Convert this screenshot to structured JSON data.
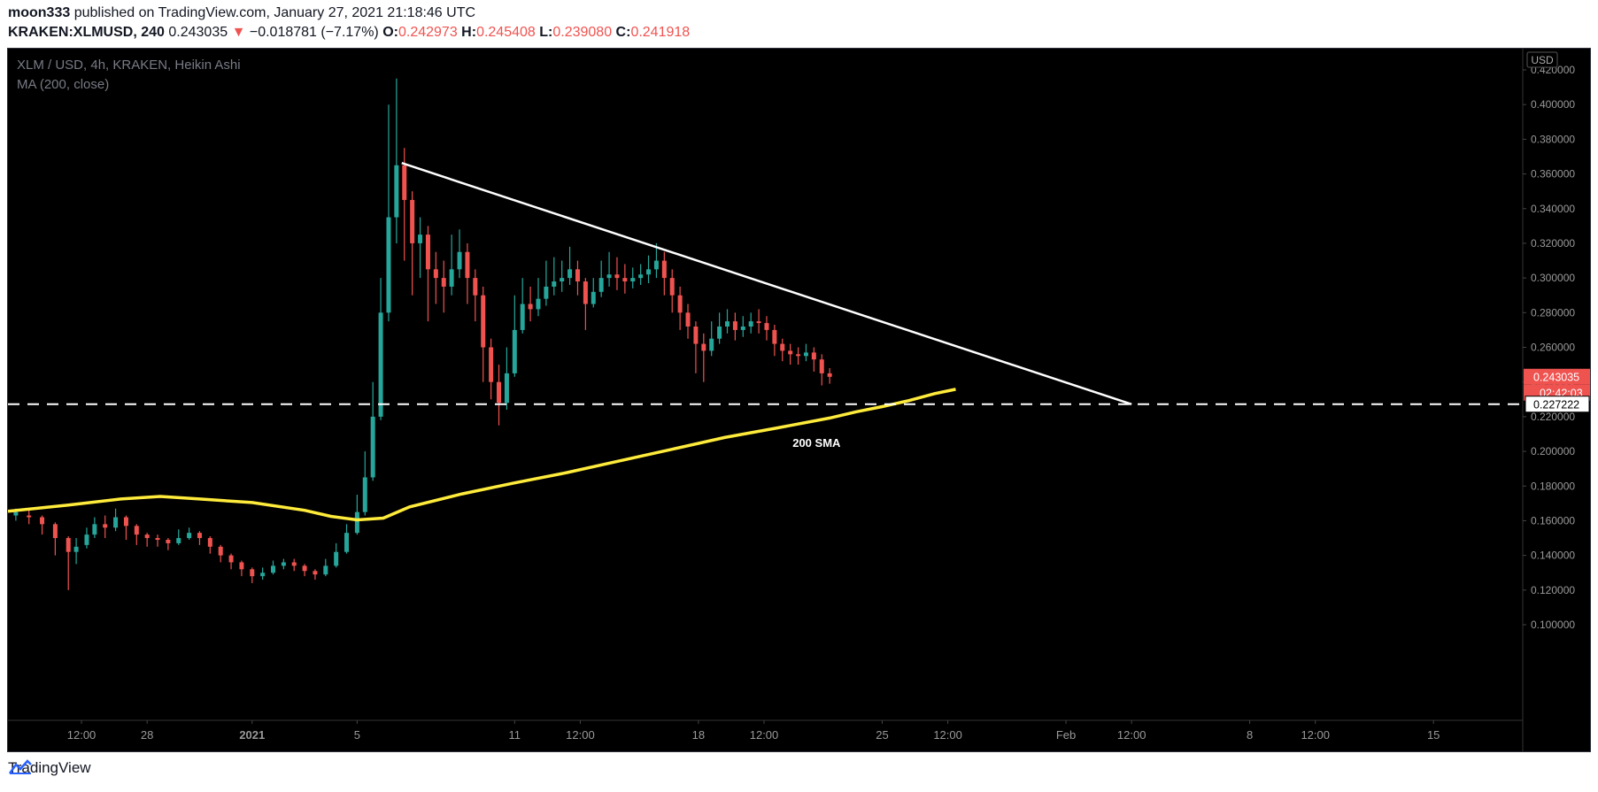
{
  "header": {
    "author": "moon333",
    "published_text": "published on TradingView.com, January 27, 2021 21:18:46 UTC",
    "symbol": "KRAKEN:XLMUSD, 240",
    "last": "0.243035",
    "change": "−0.018781 (−7.17%)",
    "o_label": "O:",
    "o_value": "0.242973",
    "h_label": "H:",
    "h_value": "0.245408",
    "l_label": "L:",
    "l_value": "0.239080",
    "c_label": "C:",
    "c_value": "0.241918"
  },
  "legend": {
    "title": "XLM / USD, 4h, KRAKEN, Heikin Ashi",
    "indicator": "MA (200, close)"
  },
  "footer": {
    "brand": "TradingView"
  },
  "colors": {
    "up": "#26a69a",
    "down": "#ef5350",
    "ma": "#ffeb3b",
    "trendline": "#ffffff",
    "background": "#000000"
  },
  "chart_data": {
    "type": "candlestick",
    "currency": "USD",
    "y_ticks": [
      "0.100000",
      "0.120000",
      "0.140000",
      "0.160000",
      "0.180000",
      "0.200000",
      "0.220000",
      "0.240000",
      "0.260000",
      "0.280000",
      "0.300000",
      "0.320000",
      "0.340000",
      "0.360000",
      "0.380000",
      "0.400000",
      "0.420000"
    ],
    "ylim": [
      0.1,
      0.42
    ],
    "x_ticks": [
      "12:00",
      "28",
      "2021",
      "5",
      "11",
      "12:00",
      "18",
      "12:00",
      "25",
      "12:00",
      "Feb",
      "12:00",
      "8",
      "12:00",
      "15"
    ],
    "x_tick_days": [
      -6.5,
      -4,
      0,
      4,
      10,
      12.5,
      17,
      19.5,
      24,
      26.5,
      31,
      33.5,
      38,
      40.5,
      45
    ],
    "xlim": [
      -9.3,
      48.4
    ],
    "price_label": "0.243035",
    "countdown_label": "02:42:03",
    "horizontal_line": {
      "price": 0.227222,
      "label": "0.227222"
    },
    "trendline": {
      "start": {
        "day": 5.7,
        "price": 0.3663
      },
      "end": {
        "day": 33.5,
        "price": 0.2272
      }
    },
    "annotation": "200 SMA",
    "ma200": [
      [
        -9.3,
        0.1655
      ],
      [
        -7,
        0.169
      ],
      [
        -5,
        0.1725
      ],
      [
        -3.5,
        0.174
      ],
      [
        -2,
        0.1725
      ],
      [
        0,
        0.1705
      ],
      [
        2,
        0.166
      ],
      [
        3,
        0.1625
      ],
      [
        4,
        0.1605
      ],
      [
        5,
        0.1615
      ],
      [
        6,
        0.168
      ],
      [
        8,
        0.1755
      ],
      [
        10,
        0.1818
      ],
      [
        12,
        0.1878
      ],
      [
        14,
        0.1945
      ],
      [
        16,
        0.2012
      ],
      [
        18,
        0.208
      ],
      [
        20,
        0.2135
      ],
      [
        22,
        0.2192
      ],
      [
        23,
        0.2228
      ],
      [
        24,
        0.2258
      ],
      [
        25,
        0.2292
      ],
      [
        26,
        0.2333
      ],
      [
        26.8,
        0.2358
      ]
    ],
    "candles": [
      [
        -9.0,
        0.163,
        0.165,
        0.16,
        0.167
      ],
      [
        -8.5,
        0.163,
        0.162,
        0.158,
        0.166
      ],
      [
        -8.0,
        0.162,
        0.158,
        0.152,
        0.163
      ],
      [
        -7.5,
        0.158,
        0.15,
        0.14,
        0.159
      ],
      [
        -7.0,
        0.15,
        0.142,
        0.12,
        0.151
      ],
      [
        -6.7,
        0.142,
        0.145,
        0.135,
        0.15
      ],
      [
        -6.3,
        0.146,
        0.152,
        0.144,
        0.156
      ],
      [
        -6.0,
        0.152,
        0.158,
        0.15,
        0.162
      ],
      [
        -5.6,
        0.158,
        0.156,
        0.15,
        0.163
      ],
      [
        -5.2,
        0.156,
        0.162,
        0.154,
        0.167
      ],
      [
        -4.8,
        0.162,
        0.157,
        0.149,
        0.163
      ],
      [
        -4.4,
        0.157,
        0.152,
        0.146,
        0.158
      ],
      [
        -4.0,
        0.152,
        0.15,
        0.145,
        0.153
      ],
      [
        -3.6,
        0.15,
        0.149,
        0.145,
        0.152
      ],
      [
        -3.2,
        0.149,
        0.147,
        0.143,
        0.15
      ],
      [
        -2.8,
        0.147,
        0.15,
        0.146,
        0.155
      ],
      [
        -2.4,
        0.15,
        0.153,
        0.149,
        0.156
      ],
      [
        -2.0,
        0.153,
        0.15,
        0.146,
        0.154
      ],
      [
        -1.6,
        0.15,
        0.145,
        0.141,
        0.151
      ],
      [
        -1.2,
        0.145,
        0.14,
        0.136,
        0.146
      ],
      [
        -0.8,
        0.14,
        0.136,
        0.132,
        0.141
      ],
      [
        -0.4,
        0.136,
        0.132,
        0.128,
        0.137
      ],
      [
        0.0,
        0.132,
        0.128,
        0.124,
        0.133
      ],
      [
        0.4,
        0.128,
        0.13,
        0.126,
        0.133
      ],
      [
        0.8,
        0.13,
        0.134,
        0.129,
        0.137
      ],
      [
        1.2,
        0.134,
        0.136,
        0.132,
        0.138
      ],
      [
        1.6,
        0.136,
        0.134,
        0.131,
        0.138
      ],
      [
        2.0,
        0.134,
        0.131,
        0.128,
        0.135
      ],
      [
        2.4,
        0.131,
        0.129,
        0.126,
        0.132
      ],
      [
        2.8,
        0.129,
        0.134,
        0.128,
        0.138
      ],
      [
        3.2,
        0.134,
        0.142,
        0.133,
        0.147
      ],
      [
        3.6,
        0.142,
        0.153,
        0.141,
        0.158
      ],
      [
        4.0,
        0.153,
        0.165,
        0.152,
        0.175
      ],
      [
        4.3,
        0.165,
        0.185,
        0.163,
        0.2
      ],
      [
        4.6,
        0.185,
        0.22,
        0.183,
        0.24
      ],
      [
        4.9,
        0.22,
        0.28,
        0.218,
        0.3
      ],
      [
        5.2,
        0.28,
        0.335,
        0.275,
        0.4
      ],
      [
        5.5,
        0.335,
        0.365,
        0.32,
        0.415
      ],
      [
        5.8,
        0.365,
        0.345,
        0.31,
        0.375
      ],
      [
        6.1,
        0.345,
        0.32,
        0.29,
        0.35
      ],
      [
        6.4,
        0.32,
        0.325,
        0.3,
        0.335
      ],
      [
        6.7,
        0.325,
        0.305,
        0.275,
        0.33
      ],
      [
        7.0,
        0.305,
        0.3,
        0.285,
        0.315
      ],
      [
        7.3,
        0.3,
        0.295,
        0.28,
        0.31
      ],
      [
        7.6,
        0.295,
        0.305,
        0.29,
        0.325
      ],
      [
        7.9,
        0.305,
        0.315,
        0.3,
        0.328
      ],
      [
        8.2,
        0.315,
        0.3,
        0.285,
        0.32
      ],
      [
        8.5,
        0.3,
        0.29,
        0.275,
        0.305
      ],
      [
        8.8,
        0.29,
        0.26,
        0.24,
        0.295
      ],
      [
        9.1,
        0.26,
        0.24,
        0.23,
        0.265
      ],
      [
        9.4,
        0.24,
        0.228,
        0.215,
        0.25
      ],
      [
        9.7,
        0.228,
        0.245,
        0.224,
        0.26
      ],
      [
        10.0,
        0.245,
        0.27,
        0.243,
        0.29
      ],
      [
        10.3,
        0.27,
        0.285,
        0.268,
        0.3
      ],
      [
        10.6,
        0.285,
        0.282,
        0.275,
        0.295
      ],
      [
        10.9,
        0.282,
        0.288,
        0.278,
        0.3
      ],
      [
        11.2,
        0.288,
        0.295,
        0.284,
        0.31
      ],
      [
        11.5,
        0.295,
        0.298,
        0.29,
        0.312
      ],
      [
        11.8,
        0.298,
        0.3,
        0.292,
        0.31
      ],
      [
        12.1,
        0.3,
        0.305,
        0.296,
        0.318
      ],
      [
        12.4,
        0.305,
        0.298,
        0.29,
        0.31
      ],
      [
        12.7,
        0.298,
        0.285,
        0.27,
        0.3
      ],
      [
        13.0,
        0.285,
        0.292,
        0.283,
        0.3
      ],
      [
        13.3,
        0.292,
        0.3,
        0.289,
        0.31
      ],
      [
        13.6,
        0.3,
        0.302,
        0.295,
        0.315
      ],
      [
        13.9,
        0.302,
        0.3,
        0.293,
        0.312
      ],
      [
        14.2,
        0.3,
        0.298,
        0.291,
        0.308
      ],
      [
        14.5,
        0.298,
        0.3,
        0.294,
        0.306
      ],
      [
        14.8,
        0.3,
        0.302,
        0.296,
        0.308
      ],
      [
        15.1,
        0.302,
        0.305,
        0.297,
        0.313
      ],
      [
        15.4,
        0.305,
        0.31,
        0.3,
        0.32
      ],
      [
        15.7,
        0.31,
        0.3,
        0.29,
        0.315
      ],
      [
        16.0,
        0.3,
        0.29,
        0.28,
        0.305
      ],
      [
        16.3,
        0.29,
        0.28,
        0.27,
        0.295
      ],
      [
        16.6,
        0.28,
        0.272,
        0.265,
        0.285
      ],
      [
        16.9,
        0.272,
        0.262,
        0.245,
        0.275
      ],
      [
        17.2,
        0.262,
        0.258,
        0.24,
        0.268
      ],
      [
        17.5,
        0.258,
        0.265,
        0.255,
        0.275
      ],
      [
        17.8,
        0.265,
        0.272,
        0.262,
        0.28
      ],
      [
        18.1,
        0.272,
        0.275,
        0.268,
        0.282
      ],
      [
        18.4,
        0.275,
        0.27,
        0.264,
        0.28
      ],
      [
        18.7,
        0.27,
        0.272,
        0.266,
        0.278
      ],
      [
        19.0,
        0.272,
        0.275,
        0.268,
        0.28
      ],
      [
        19.3,
        0.275,
        0.274,
        0.268,
        0.282
      ],
      [
        19.6,
        0.274,
        0.27,
        0.264,
        0.278
      ],
      [
        19.9,
        0.27,
        0.262,
        0.255,
        0.273
      ],
      [
        20.2,
        0.262,
        0.258,
        0.252,
        0.265
      ],
      [
        20.5,
        0.258,
        0.256,
        0.25,
        0.262
      ],
      [
        20.8,
        0.256,
        0.255,
        0.25,
        0.26
      ],
      [
        21.1,
        0.255,
        0.257,
        0.252,
        0.262
      ],
      [
        21.4,
        0.257,
        0.253,
        0.246,
        0.26
      ],
      [
        21.7,
        0.253,
        0.245,
        0.238,
        0.256
      ],
      [
        22.0,
        0.245,
        0.243,
        0.239,
        0.248
      ]
    ]
  }
}
